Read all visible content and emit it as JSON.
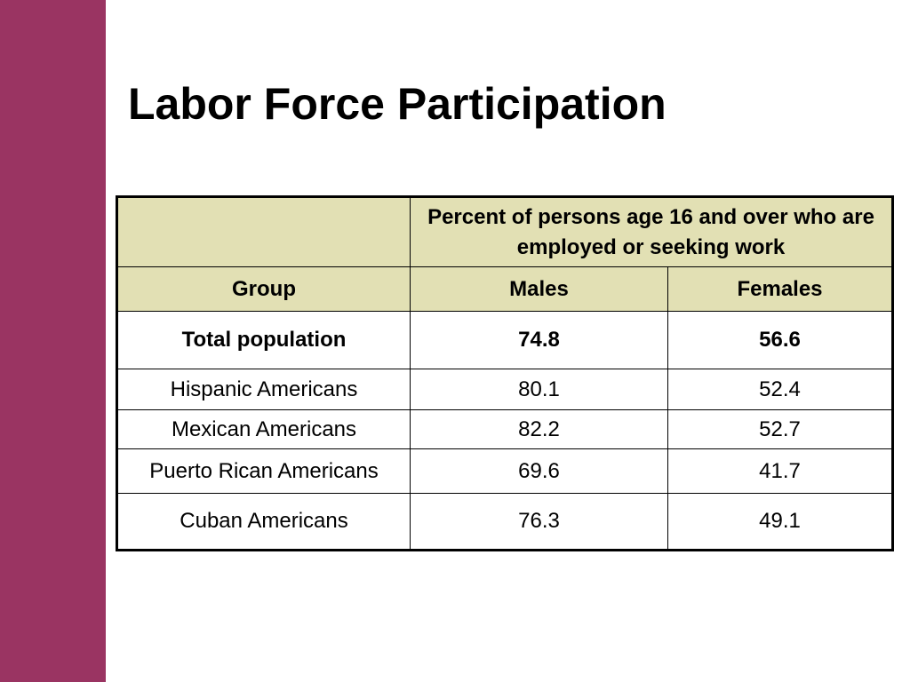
{
  "slide": {
    "title": "Labor Force Participation"
  },
  "table": {
    "span_header": "Percent of persons age 16 and over who are employed or seeking work",
    "columns": [
      "Group",
      "Males",
      "Females"
    ],
    "rows": [
      {
        "group": "Total population",
        "males": "74.8",
        "females": "56.6"
      },
      {
        "group": "Hispanic Americans",
        "males": "80.1",
        "females": "52.4"
      },
      {
        "group": "Mexican Americans",
        "males": "82.2",
        "females": "52.7"
      },
      {
        "group": "Puerto Rican Americans",
        "males": "69.6",
        "females": "41.7"
      },
      {
        "group": "Cuban Americans",
        "males": "76.3",
        "females": "49.1"
      }
    ]
  },
  "colors": {
    "sidebar": "#9a3462",
    "header_fill": "#e2e0b4"
  }
}
